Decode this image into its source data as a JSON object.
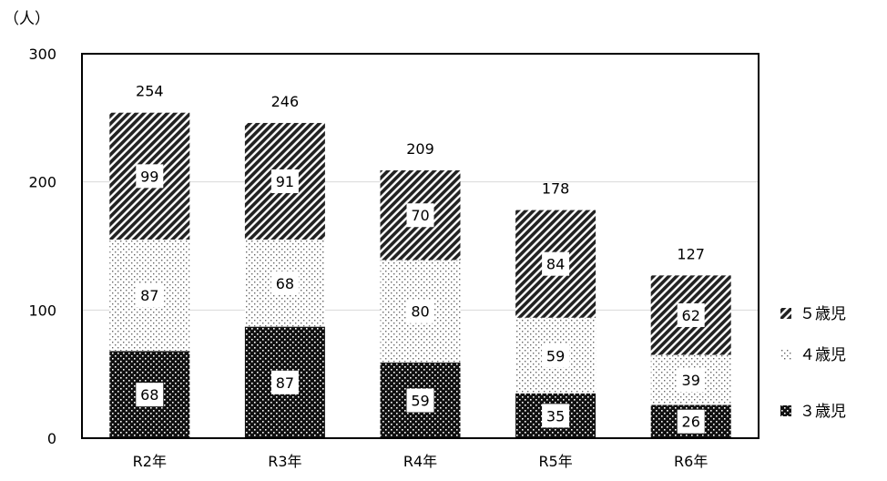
{
  "chart_data": {
    "type": "bar",
    "stacked": true,
    "unit_label": "（人）",
    "categories": [
      "R2年",
      "R3年",
      "R4年",
      "R5年",
      "R6年"
    ],
    "series": [
      {
        "name": "３歳児",
        "values": [
          68,
          87,
          59,
          35,
          26
        ],
        "pattern": "dark-dots",
        "color": "#111111"
      },
      {
        "name": "４歳児",
        "values": [
          87,
          68,
          80,
          59,
          39
        ],
        "pattern": "light-dots",
        "color": "#ffffff"
      },
      {
        "name": "５歳児",
        "values": [
          99,
          91,
          70,
          84,
          62
        ],
        "pattern": "diagonal-stripes",
        "color": "#222222"
      }
    ],
    "totals": [
      254,
      246,
      209,
      178,
      127
    ],
    "ylim": [
      0,
      300
    ],
    "yticks": [
      0,
      100,
      200,
      300
    ],
    "grid": true,
    "legend_position": "right"
  }
}
